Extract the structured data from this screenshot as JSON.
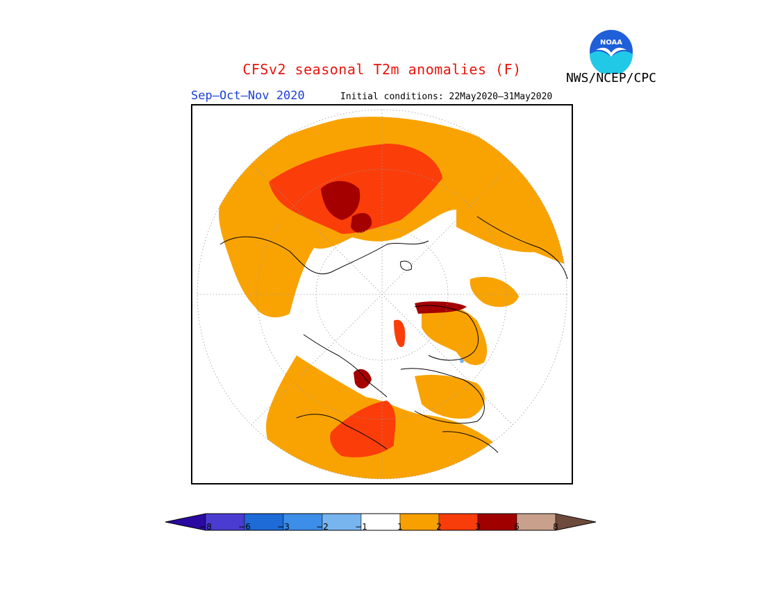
{
  "title": "CFSv2 seasonal T2m anomalies (F)",
  "agency": "NWS/NCEP/CPC",
  "season": "Sep–Oct–Nov 2020",
  "initial_conditions": "Initial conditions: 22May2020–31May2020",
  "logo": {
    "text": "NOAA",
    "colors": {
      "sky": "#1f5fd8",
      "water": "#21c9e6",
      "bird": "#ffffff"
    }
  },
  "colorbar": {
    "colors": [
      "#2a0aa0",
      "#4a3cd0",
      "#1e6ad6",
      "#3c8ee8",
      "#78b4ee",
      "#ffffff",
      "#f8a000",
      "#f83c0a",
      "#a00000",
      "#c8a08c",
      "#6e4a3c"
    ],
    "labels": [
      "−8",
      "−6",
      "−3",
      "−2",
      "−1",
      "1",
      "2",
      "3",
      "6",
      "8"
    ]
  },
  "map_colors": {
    "warm1": "#f9a303",
    "warm2": "#fb3d0a",
    "warm3": "#a40000",
    "cool1": "#78b4ee"
  }
}
